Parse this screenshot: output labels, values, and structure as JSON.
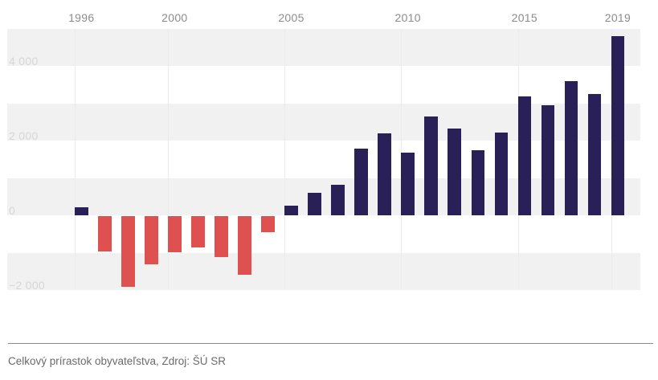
{
  "chart_data": {
    "type": "bar",
    "categories": [
      1996,
      1997,
      1998,
      1999,
      2000,
      2001,
      2002,
      2003,
      2004,
      2005,
      2006,
      2007,
      2008,
      2009,
      2010,
      2011,
      2012,
      2013,
      2014,
      2015,
      2016,
      2017,
      2018,
      2019
    ],
    "values": [
      210,
      -940,
      -1890,
      -1300,
      -970,
      -830,
      -1090,
      -1560,
      -430,
      260,
      610,
      820,
      1800,
      2210,
      1690,
      2660,
      2340,
      1750,
      2230,
      3200,
      2950,
      3590,
      3250,
      4810
    ],
    "x_tick_labels": [
      "1996",
      "2000",
      "2005",
      "2010",
      "2015",
      "2019"
    ],
    "x_tick_years": [
      1996,
      2000,
      2005,
      2010,
      2015,
      2019
    ],
    "y_ticks": [
      {
        "label": "4 000",
        "value": 4000
      },
      {
        "label": "2 000",
        "value": 2000
      },
      {
        "label": "0",
        "value": 0
      },
      {
        "label": "−2 000",
        "value": -2000
      }
    ],
    "ylim": [
      -2000,
      5000
    ],
    "band_step": 1000,
    "grid": "horizontal-bands-and-vertical-lines",
    "legend_position": "none",
    "title": "",
    "xlabel": "",
    "ylabel": "",
    "caption": "Celkový prírastok obyvateľstva, Zdroj: ŠÚ SR",
    "colors": {
      "positive_bar": "#292058",
      "negative_bar": "#de5150",
      "band": "#f2f1f1",
      "gridline": "#ebebeb",
      "x_tick_text": "#8c8c8c",
      "y_tick_text": "#d7d6d6",
      "caption_text": "#6b6b6b",
      "divider": "#8a8a8a"
    }
  }
}
